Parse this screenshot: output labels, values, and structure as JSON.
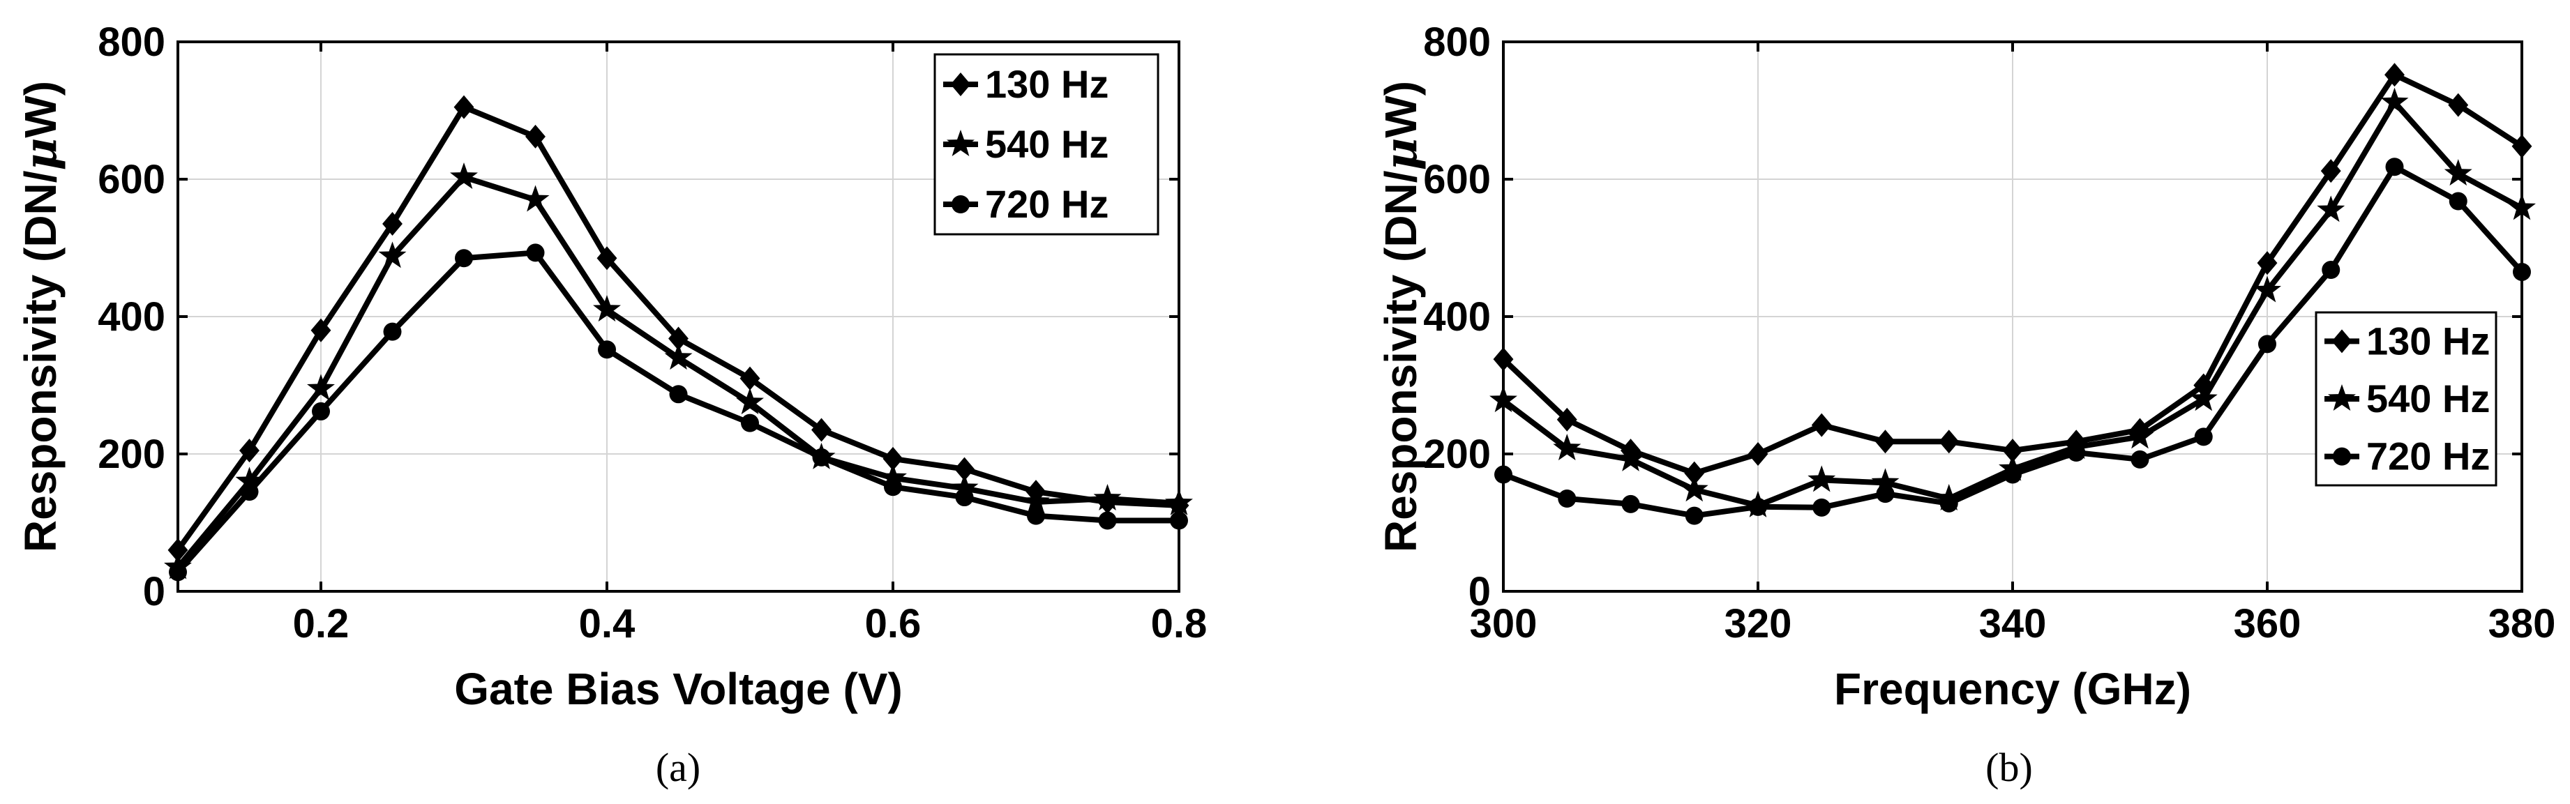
{
  "chart_data": [
    {
      "type": "line",
      "caption": "(a)",
      "xlabel": "Gate Bias Voltage (V)",
      "ylabel": "Responsivity (DN/",
      "ylabel_mu": "μ",
      "ylabel_tail": "W)",
      "xlim": [
        0.1,
        0.8
      ],
      "ylim": [
        0,
        800
      ],
      "xticks": [
        0.2,
        0.4,
        0.6,
        0.8
      ],
      "xtick_labels": [
        "0.2",
        "0.4",
        "0.6",
        "0.8"
      ],
      "yticks": [
        0,
        200,
        400,
        600,
        800
      ],
      "ytick_labels": [
        "0",
        "200",
        "400",
        "600",
        "800"
      ],
      "grid": true,
      "legend_position": "top-right",
      "x": [
        0.1,
        0.15,
        0.2,
        0.25,
        0.3,
        0.35,
        0.4,
        0.45,
        0.5,
        0.55,
        0.6,
        0.65,
        0.7,
        0.75,
        0.8
      ],
      "series": [
        {
          "name": "130 Hz",
          "marker": "diamond",
          "values": [
            60,
            205,
            380,
            535,
            705,
            662,
            485,
            368,
            310,
            235,
            193,
            178,
            145,
            130,
            125
          ]
        },
        {
          "name": "540 Hz",
          "marker": "star",
          "values": [
            35,
            160,
            295,
            488,
            603,
            570,
            410,
            340,
            275,
            195,
            165,
            150,
            130,
            135,
            128
          ]
        },
        {
          "name": "720 Hz",
          "marker": "circle",
          "values": [
            28,
            145,
            262,
            378,
            485,
            493,
            352,
            287,
            245,
            195,
            152,
            137,
            110,
            103,
            103
          ]
        }
      ]
    },
    {
      "type": "line",
      "caption": "(b)",
      "xlabel": "Frequency (GHz)",
      "ylabel": "Responsivity (DN/",
      "ylabel_mu": "μ",
      "ylabel_tail": "W)",
      "xlim": [
        300,
        380
      ],
      "ylim": [
        0,
        800
      ],
      "xticks": [
        300,
        320,
        340,
        360,
        380
      ],
      "xtick_labels": [
        "300",
        "320",
        "340",
        "360",
        "380"
      ],
      "yticks": [
        0,
        200,
        400,
        600,
        800
      ],
      "ytick_labels": [
        "0",
        "200",
        "400",
        "600",
        "800"
      ],
      "grid": true,
      "legend_position": "right",
      "x": [
        300,
        305,
        310,
        315,
        320,
        325,
        330,
        335,
        340,
        345,
        350,
        355,
        360,
        365,
        370,
        375,
        380
      ],
      "series": [
        {
          "name": "130 Hz",
          "marker": "diamond",
          "values": [
            338,
            250,
            205,
            172,
            200,
            242,
            218,
            218,
            205,
            218,
            235,
            300,
            478,
            612,
            752,
            708,
            648
          ]
        },
        {
          "name": "540 Hz",
          "marker": "star",
          "values": [
            278,
            208,
            192,
            148,
            125,
            162,
            158,
            135,
            178,
            210,
            225,
            280,
            438,
            555,
            712,
            608,
            558
          ]
        },
        {
          "name": "720 Hz",
          "marker": "circle",
          "values": [
            170,
            135,
            127,
            110,
            123,
            122,
            142,
            128,
            170,
            202,
            192,
            225,
            360,
            468,
            618,
            568,
            465
          ]
        }
      ]
    }
  ]
}
